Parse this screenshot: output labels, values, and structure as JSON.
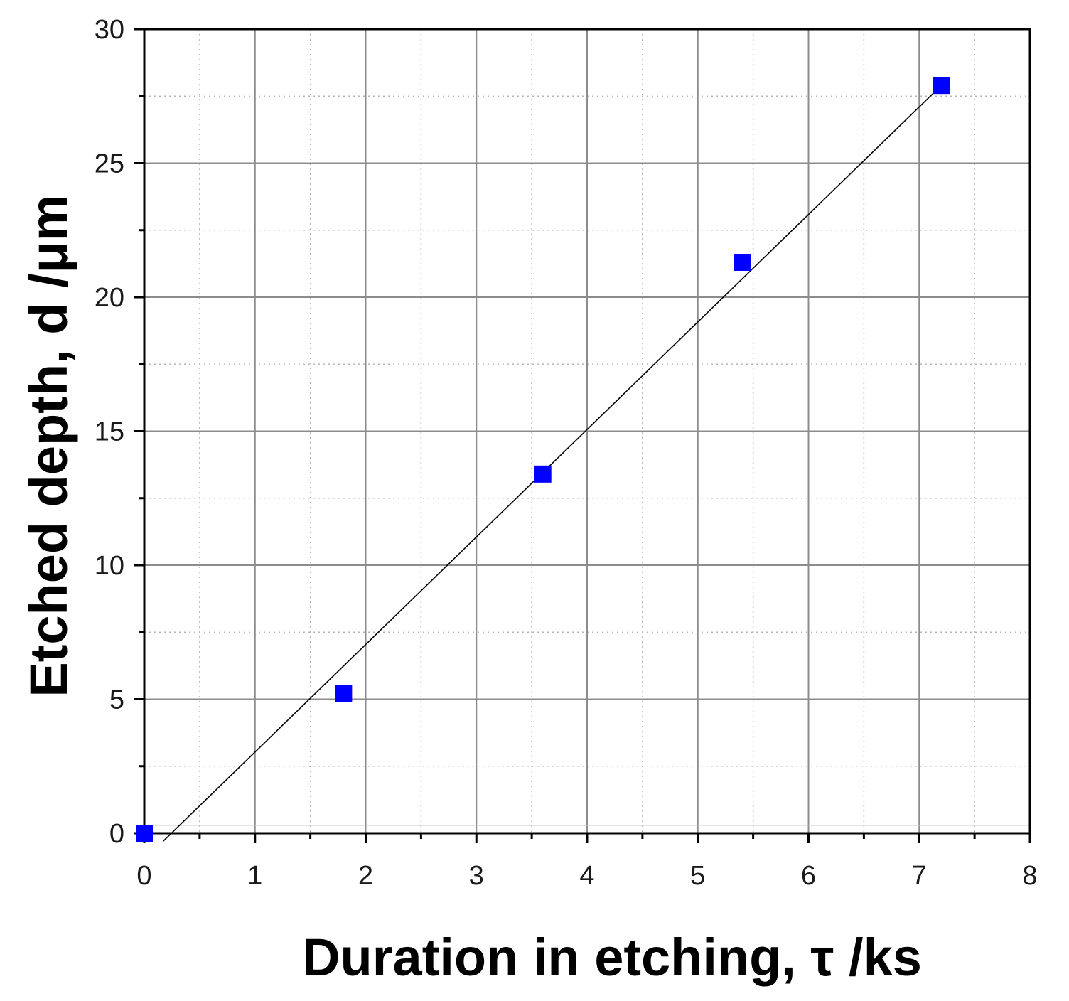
{
  "chart_data": {
    "type": "scatter",
    "title": "",
    "xlabel": "Duration in etching, τ /ks",
    "ylabel": "Etched depth, d /μm",
    "xlim": [
      0,
      8
    ],
    "ylim": [
      0,
      30
    ],
    "x_ticks": [
      "0",
      "1",
      "2",
      "3",
      "4",
      "5",
      "6",
      "7",
      "8"
    ],
    "y_ticks": [
      "0",
      "5",
      "10",
      "15",
      "20",
      "25",
      "30"
    ],
    "grid": true,
    "marker": "square",
    "marker_color": "#0000ff",
    "series": [
      {
        "x": [
          0,
          1.8,
          3.6,
          5.4,
          7.2
        ],
        "y": [
          0,
          5.2,
          13.4,
          21.3,
          27.9
        ]
      }
    ],
    "fit_line": {
      "color": "#000000",
      "x": [
        0.17,
        7.2
      ],
      "y": [
        -0.3,
        27.9
      ]
    }
  }
}
